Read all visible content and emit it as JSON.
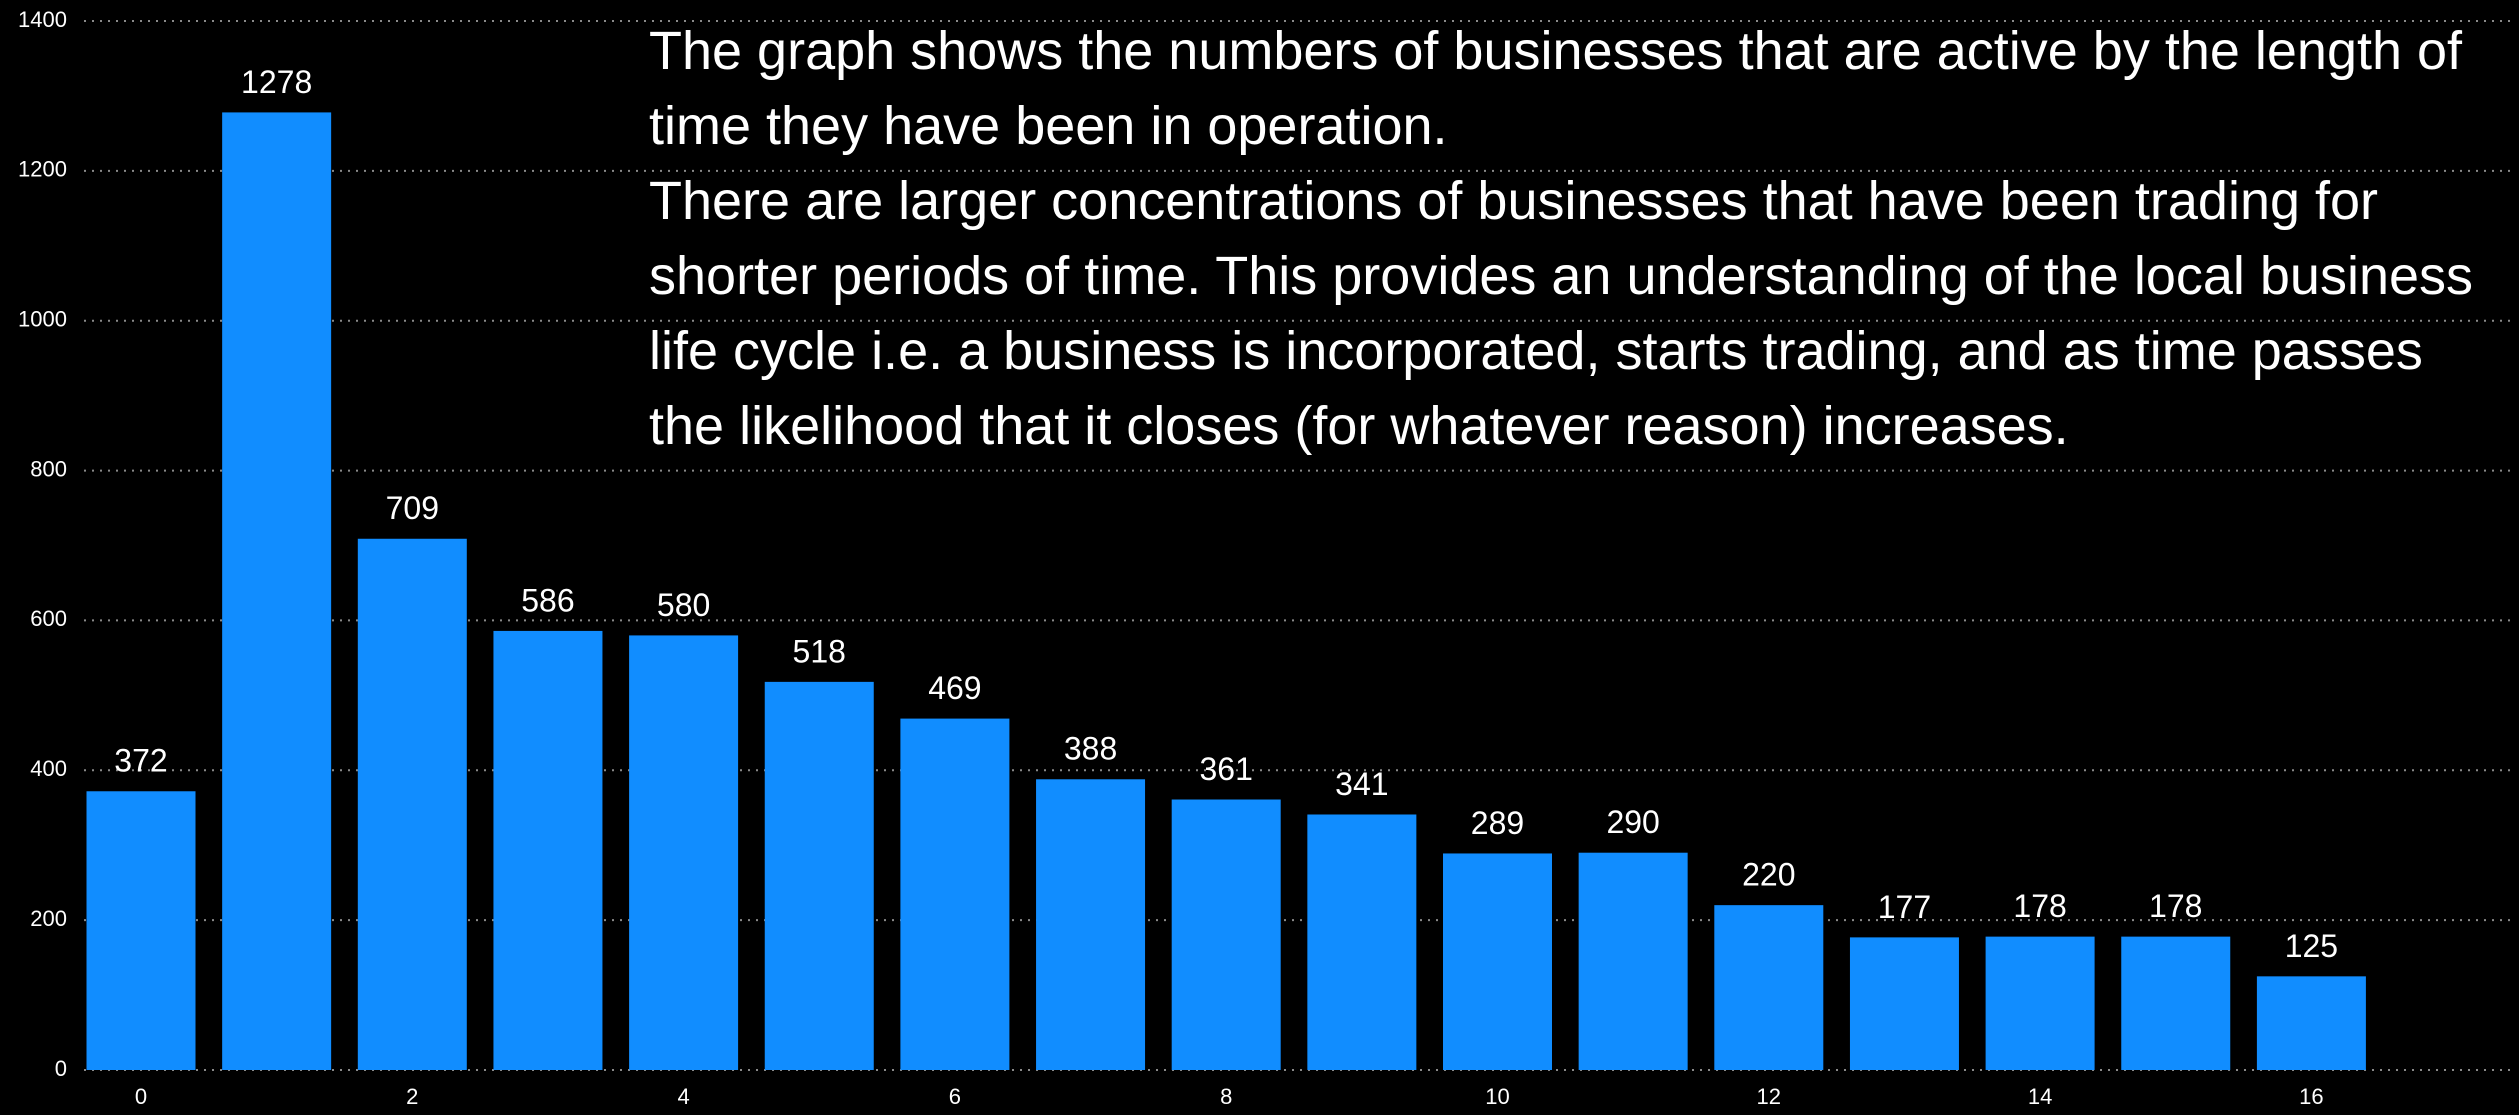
{
  "chart_data": {
    "type": "bar",
    "categories": [
      "0",
      null,
      "2",
      null,
      "4",
      null,
      "6",
      null,
      "8",
      null,
      "10",
      null,
      "12",
      null,
      "14",
      null,
      "16"
    ],
    "values": [
      372,
      1278,
      709,
      586,
      580,
      518,
      469,
      388,
      361,
      341,
      289,
      290,
      220,
      177,
      178,
      178,
      125
    ],
    "color": "#118DFF",
    "ylim": [
      0,
      1400
    ],
    "yticks": [
      0,
      200,
      400,
      600,
      800,
      1000,
      1200,
      1400
    ],
    "grid": true,
    "annotations": [
      "The graph shows the numbers of businesses that are active by the length of time they have been in operation.",
      "There are larger concentrations of businesses that have been trading for shorter periods of time.  This provides an understanding of the local business life cycle i.e. a business is incorporated, starts trading, and as time passes the likelihood that it closes (for whatever reason) increases."
    ]
  }
}
